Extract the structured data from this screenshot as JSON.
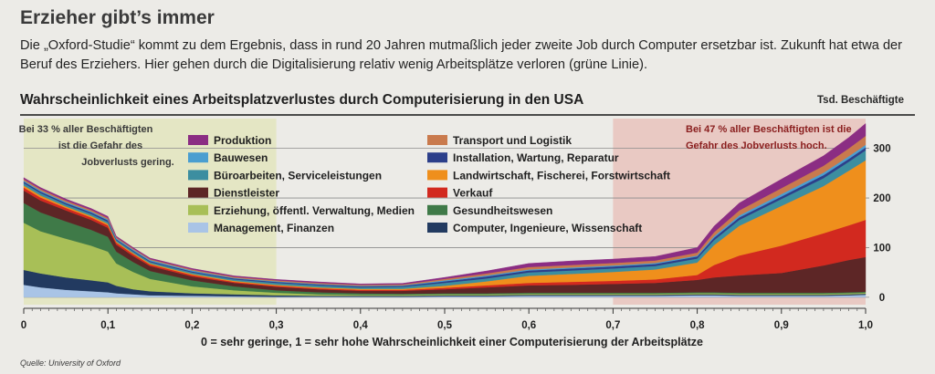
{
  "headline": "Erzieher gibt’s immer",
  "intro": "Die „Oxford-Studie“ kommt zu dem Ergebnis, dass in rund 20 Jahren mutmaßlich jeder zweite Job durch Computer ersetzbar ist. Zukunft hat etwa der Beruf des Erziehers. Hier gehen durch die Digitalisierung relativ wenig Arbeitsplätze verloren (grüne Linie).",
  "source": "Quelle: University of Oxford",
  "chart_data": {
    "type": "area",
    "title": "Wahrscheinlichkeit eines Arbeitsplatzverlustes durch Computerisierung in den USA",
    "ylabel": "Tsd. Beschäftigte",
    "xlabel": "0 = sehr geringe, 1 = sehr hohe Wahrscheinlichkeit einer Computerisierung der Arbeitsplätze",
    "xlim": [
      0,
      1
    ],
    "ylim": [
      -15,
      360
    ],
    "x_ticks": [
      0,
      0.1,
      0.2,
      0.3,
      0.4,
      0.5,
      0.6,
      0.7,
      0.8,
      0.9,
      1.0
    ],
    "x_tick_labels": [
      "0",
      "0,1",
      "0,2",
      "0,3",
      "0,4",
      "0,5",
      "0,6",
      "0,7",
      "0,8",
      "0,9",
      "1,0"
    ],
    "y_ticks": [
      0,
      100,
      200,
      300
    ],
    "y_tick_labels": [
      "0",
      "100",
      "200",
      "300"
    ],
    "annotations": {
      "low_line1": "Bei 33 % aller Beschäftigten",
      "low_line2": "ist die Gefahr des",
      "low_line3": "Jobverlusts gering.",
      "high_line1": "Bei 47 % aller Beschäftigten ist die",
      "high_line2": "Gefahr des Jobverlusts hoch."
    },
    "zones": [
      {
        "name": "gering",
        "from": 0.0,
        "to": 0.3,
        "color": "#e4e6c4"
      },
      {
        "name": "hoch",
        "from": 0.7,
        "to": 1.0,
        "color": "#e9c9c3"
      }
    ],
    "x": [
      0.0,
      0.02,
      0.05,
      0.08,
      0.1,
      0.11,
      0.13,
      0.15,
      0.2,
      0.25,
      0.3,
      0.35,
      0.4,
      0.45,
      0.5,
      0.55,
      0.6,
      0.65,
      0.7,
      0.75,
      0.8,
      0.82,
      0.85,
      0.9,
      0.95,
      0.98,
      1.0
    ],
    "series": [
      {
        "name": "Management, Finanzen",
        "color": "#a9c4e6",
        "values": [
          25,
          20,
          15,
          12,
          10,
          8,
          6,
          4,
          3,
          2,
          1,
          1,
          1,
          1,
          2,
          2,
          3,
          3,
          3,
          3,
          4,
          4,
          3,
          3,
          3,
          4,
          5
        ]
      },
      {
        "name": "Computer, Ingenieure, Wissenschaft",
        "color": "#223a60",
        "values": [
          30,
          28,
          25,
          22,
          20,
          15,
          10,
          8,
          5,
          4,
          3,
          2,
          2,
          2,
          2,
          2,
          2,
          2,
          2,
          2,
          2,
          2,
          2,
          2,
          2,
          2,
          2
        ]
      },
      {
        "name": "Erziehung, öffentl. Verwaltung, Medien",
        "color": "#a8bf57",
        "values": [
          95,
          85,
          78,
          70,
          62,
          45,
          35,
          25,
          14,
          8,
          5,
          3,
          2,
          2,
          2,
          2,
          2,
          2,
          2,
          2,
          2,
          2,
          2,
          2,
          2,
          2,
          2
        ]
      },
      {
        "name": "Gesundheitswesen",
        "color": "#3f7a48",
        "values": [
          40,
          38,
          35,
          32,
          30,
          24,
          20,
          16,
          12,
          8,
          5,
          4,
          3,
          2,
          2,
          2,
          2,
          2,
          2,
          2,
          2,
          2,
          2,
          2,
          2,
          2,
          2
        ]
      },
      {
        "name": "Dienstleister",
        "color": "#5d2626",
        "values": [
          25,
          24,
          22,
          20,
          18,
          14,
          12,
          10,
          8,
          7,
          7,
          6,
          5,
          6,
          8,
          12,
          15,
          16,
          18,
          20,
          25,
          30,
          35,
          40,
          55,
          65,
          70
        ]
      },
      {
        "name": "Verkauf",
        "color": "#d2291f",
        "values": [
          6,
          6,
          5,
          5,
          5,
          4,
          4,
          3,
          3,
          2,
          2,
          2,
          2,
          2,
          3,
          4,
          5,
          6,
          6,
          7,
          10,
          25,
          40,
          55,
          65,
          70,
          75
        ]
      },
      {
        "name": "Landwirtschaft, Fischerei, Forstwirtschaft",
        "color": "#ef8f1c",
        "values": [
          4,
          4,
          3,
          3,
          3,
          2,
          2,
          2,
          2,
          2,
          2,
          2,
          2,
          2,
          4,
          8,
          14,
          16,
          18,
          20,
          25,
          40,
          60,
          80,
          95,
          110,
          120
        ]
      },
      {
        "name": "Büroarbeiten, Serviceleistungen",
        "color": "#3c8ea0",
        "values": [
          5,
          5,
          4,
          4,
          4,
          3,
          3,
          3,
          3,
          3,
          4,
          4,
          3,
          4,
          6,
          6,
          7,
          7,
          7,
          7,
          8,
          10,
          12,
          14,
          16,
          18,
          20
        ]
      },
      {
        "name": "Installation, Wartung, Reparatur",
        "color": "#2c3f8a",
        "values": [
          3,
          3,
          3,
          3,
          3,
          2,
          2,
          2,
          2,
          2,
          2,
          2,
          2,
          2,
          3,
          4,
          4,
          4,
          4,
          4,
          4,
          5,
          5,
          5,
          6,
          6,
          6
        ]
      },
      {
        "name": "Bauwesen",
        "color": "#4a9ed0",
        "values": [
          2,
          2,
          2,
          2,
          2,
          2,
          2,
          2,
          2,
          1,
          1,
          1,
          1,
          1,
          2,
          2,
          2,
          2,
          2,
          2,
          2,
          3,
          4,
          5,
          5,
          5,
          5
        ]
      },
      {
        "name": "Transport und Logistik",
        "color": "#c97a4d",
        "values": [
          3,
          3,
          3,
          3,
          3,
          2,
          2,
          2,
          2,
          2,
          2,
          2,
          2,
          2,
          3,
          4,
          5,
          5,
          5,
          5,
          6,
          8,
          10,
          12,
          14,
          16,
          18
        ]
      },
      {
        "name": "Produktion",
        "color": "#8b2d83",
        "values": [
          3,
          3,
          3,
          3,
          3,
          2,
          2,
          2,
          2,
          2,
          2,
          2,
          2,
          2,
          3,
          5,
          7,
          8,
          8,
          8,
          10,
          12,
          15,
          18,
          20,
          22,
          25
        ]
      }
    ],
    "legend_left": [
      "Produktion",
      "Bauwesen",
      "Büroarbeiten, Serviceleistungen",
      "Dienstleister",
      "Erziehung, öffentl. Verwaltung, Medien",
      "Management, Finanzen"
    ],
    "legend_right": [
      "Transport und Logistik",
      "Installation, Wartung, Reparatur",
      "Landwirtschaft, Fischerei, Forstwirtschaft",
      "Verkauf",
      "Gesundheitswesen",
      "Computer, Ingenieure, Wissenschaft"
    ]
  }
}
